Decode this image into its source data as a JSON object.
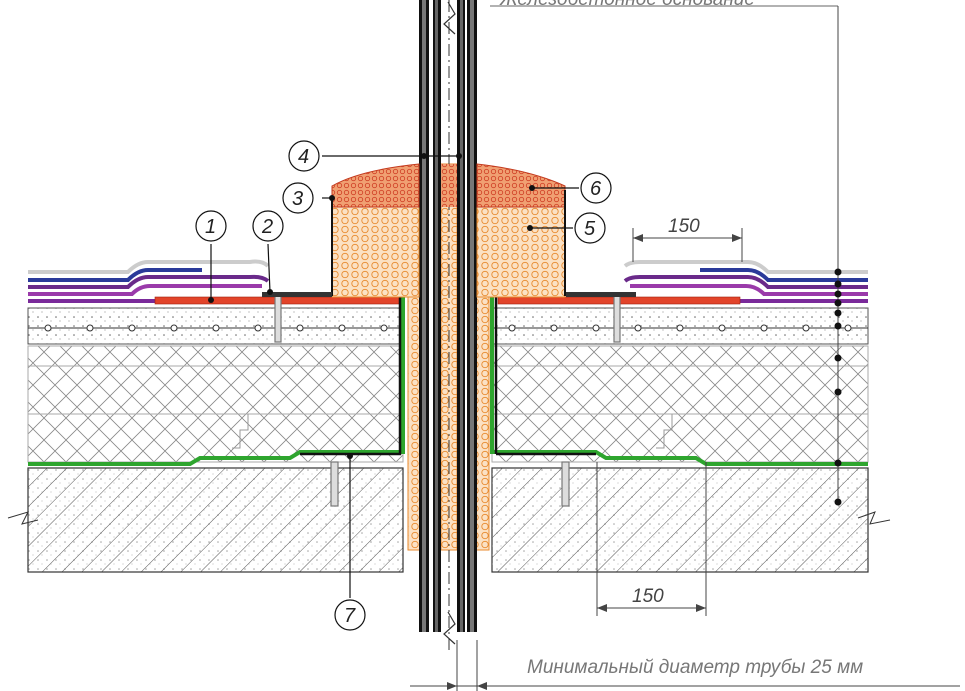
{
  "header": {
    "caption": "Железобетонное основание"
  },
  "footer": {
    "caption": "Минимальный диаметр трубы  25 мм"
  },
  "dimensions": {
    "upper": "150",
    "lower": "150"
  },
  "callouts": [
    "1",
    "2",
    "3",
    "4",
    "5",
    "6",
    "7"
  ],
  "colors": {
    "seal_orange": "#f4a35a",
    "membrane_red": "#e2442a",
    "waterproof_green": "#2ea52e",
    "layer_purple": "#7a2a9a",
    "layer_blue": "#2a3a9a",
    "layer_gray": "#c8c8c8",
    "pipe_black": "#111111"
  }
}
